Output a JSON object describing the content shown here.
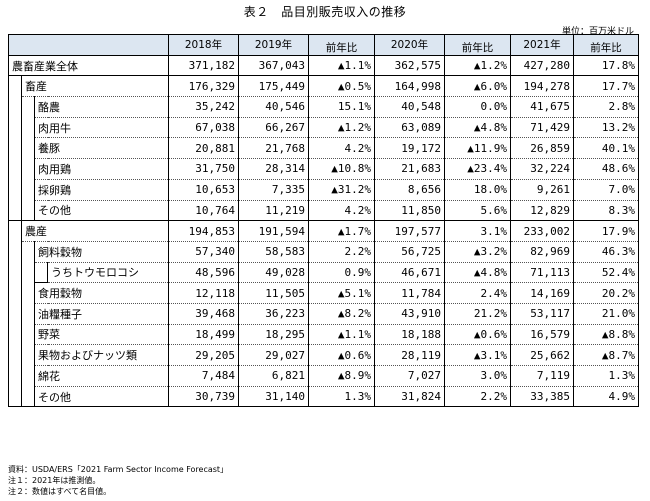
{
  "title": "表２　品目別販売収入の推移",
  "unit": "単位：百万米ドル",
  "header": [
    "2018年",
    "2019年",
    "前年比",
    "2020年",
    "前年比",
    "2021年",
    "前年比"
  ],
  "rows": [
    {
      "level": 0,
      "label": "農畜産業全体",
      "v": [
        "371,182",
        "367,043",
        "▲1.1%",
        "362,575",
        "▲1.2%",
        "427,280",
        "17.8%"
      ]
    },
    {
      "level": 1,
      "label": "畜産",
      "v": [
        "176,329",
        "175,449",
        "▲0.5%",
        "164,998",
        "▲6.0%",
        "194,278",
        "17.7%"
      ]
    },
    {
      "level": 2,
      "label": "酪農",
      "v": [
        "35,242",
        "40,546",
        "15.1%",
        "40,548",
        "0.0%",
        "41,675",
        "2.8%"
      ]
    },
    {
      "level": 2,
      "label": "肉用牛",
      "v": [
        "67,038",
        "66,267",
        "▲1.2%",
        "63,089",
        "▲4.8%",
        "71,429",
        "13.2%"
      ]
    },
    {
      "level": 2,
      "label": "養豚",
      "v": [
        "20,881",
        "21,768",
        "4.2%",
        "19,172",
        "▲11.9%",
        "26,859",
        "40.1%"
      ]
    },
    {
      "level": 2,
      "label": "肉用鶏",
      "v": [
        "31,750",
        "28,314",
        "▲10.8%",
        "21,683",
        "▲23.4%",
        "32,224",
        "48.6%"
      ]
    },
    {
      "level": 2,
      "label": "採卵鶏",
      "v": [
        "10,653",
        "7,335",
        "▲31.2%",
        "8,656",
        "18.0%",
        "9,261",
        "7.0%"
      ]
    },
    {
      "level": 2,
      "label": "その他",
      "v": [
        "10,764",
        "11,219",
        "4.2%",
        "11,850",
        "5.6%",
        "12,829",
        "8.3%"
      ]
    },
    {
      "level": 1,
      "label": "農産",
      "v": [
        "194,853",
        "191,594",
        "▲1.7%",
        "197,577",
        "3.1%",
        "233,002",
        "17.9%"
      ]
    },
    {
      "level": 2,
      "label": "飼料穀物",
      "v": [
        "57,340",
        "58,583",
        "2.2%",
        "56,725",
        "▲3.2%",
        "82,969",
        "46.3%"
      ]
    },
    {
      "level": 3,
      "label": "うちトウモロコシ",
      "v": [
        "48,596",
        "49,028",
        "0.9%",
        "46,671",
        "▲4.8%",
        "71,113",
        "52.4%"
      ]
    },
    {
      "level": 2,
      "label": "食用穀物",
      "v": [
        "12,118",
        "11,505",
        "▲5.1%",
        "11,784",
        "2.4%",
        "14,169",
        "20.2%"
      ]
    },
    {
      "level": 2,
      "label": "油糧種子",
      "v": [
        "39,468",
        "36,223",
        "▲8.2%",
        "43,910",
        "21.2%",
        "53,117",
        "21.0%"
      ]
    },
    {
      "level": 2,
      "label": "野菜",
      "v": [
        "18,499",
        "18,295",
        "▲1.1%",
        "18,188",
        "▲0.6%",
        "16,579",
        "▲8.8%"
      ]
    },
    {
      "level": 2,
      "label": "果物およびナッツ類",
      "v": [
        "29,205",
        "29,027",
        "▲0.6%",
        "28,119",
        "▲3.1%",
        "25,662",
        "▲8.7%"
      ]
    },
    {
      "level": 2,
      "label": "綿花",
      "v": [
        "7,484",
        "6,821",
        "▲8.9%",
        "7,027",
        "3.0%",
        "7,119",
        "1.3%"
      ]
    },
    {
      "level": 2,
      "label": "その他",
      "v": [
        "30,739",
        "31,140",
        "1.3%",
        "31,824",
        "2.2%",
        "33,385",
        "4.9%"
      ]
    }
  ],
  "notes": [
    "資料：USDA/ERS「2021 Farm Sector Income Forecast」",
    "注１：2021年は推測値。",
    "注２：数値はすべて名目値。"
  ]
}
